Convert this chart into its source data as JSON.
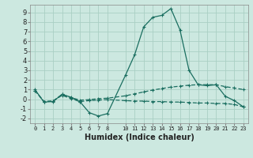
{
  "xlabel": "Humidex (Indice chaleur)",
  "bg_color": "#cce8e0",
  "line_color": "#1a6e60",
  "grid_color": "#aacfc4",
  "x_ticks": [
    0,
    1,
    2,
    3,
    4,
    5,
    6,
    7,
    8,
    10,
    11,
    12,
    13,
    14,
    15,
    16,
    17,
    18,
    19,
    20,
    21,
    22,
    23
  ],
  "xlim": [
    -0.5,
    23.5
  ],
  "ylim": [
    -2.5,
    9.8
  ],
  "yticks": [
    -2,
    -1,
    0,
    1,
    2,
    3,
    4,
    5,
    6,
    7,
    8,
    9
  ],
  "curve1_x": [
    0,
    1,
    2,
    3,
    4,
    5,
    6,
    7,
    8,
    10,
    11,
    12,
    13,
    14,
    15,
    16,
    17,
    18,
    19,
    20,
    21,
    22,
    23
  ],
  "curve1_y": [
    1.0,
    -0.3,
    -0.25,
    0.5,
    0.2,
    -0.3,
    -1.4,
    -1.75,
    -1.5,
    2.5,
    4.6,
    7.5,
    8.5,
    8.7,
    9.4,
    7.2,
    3.0,
    1.5,
    1.4,
    1.5,
    0.3,
    -0.15,
    -0.8
  ],
  "curve2_x": [
    0,
    1,
    2,
    3,
    4,
    5,
    6,
    7,
    8,
    10,
    11,
    12,
    13,
    14,
    15,
    16,
    17,
    18,
    19,
    20,
    21,
    22,
    23
  ],
  "curve2_y": [
    0.9,
    -0.25,
    -0.2,
    0.5,
    0.15,
    -0.1,
    -0.05,
    0.05,
    0.1,
    0.35,
    0.55,
    0.75,
    0.95,
    1.1,
    1.25,
    1.35,
    1.45,
    1.5,
    1.5,
    1.5,
    1.3,
    1.15,
    1.0
  ],
  "curve3_x": [
    0,
    1,
    2,
    3,
    4,
    5,
    6,
    7,
    8,
    10,
    11,
    12,
    13,
    14,
    15,
    16,
    17,
    18,
    19,
    20,
    21,
    22,
    23
  ],
  "curve3_y": [
    0.9,
    -0.25,
    -0.2,
    0.4,
    0.05,
    -0.25,
    -0.15,
    -0.1,
    -0.05,
    -0.15,
    -0.2,
    -0.2,
    -0.25,
    -0.25,
    -0.3,
    -0.3,
    -0.35,
    -0.4,
    -0.4,
    -0.45,
    -0.45,
    -0.55,
    -0.8
  ]
}
